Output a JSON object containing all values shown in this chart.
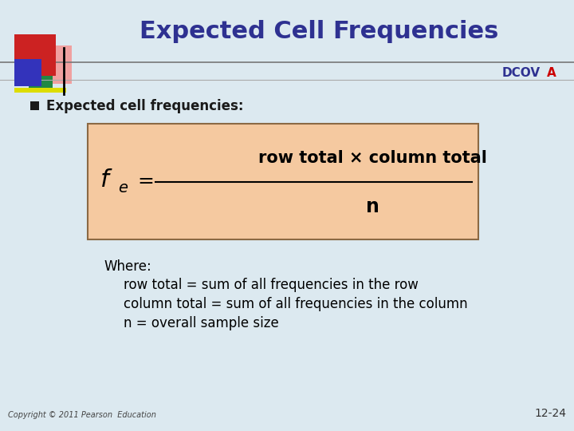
{
  "title": "Expected Cell Frequencies",
  "title_color": "#2E3191",
  "title_fontsize": 22,
  "bg_color": "#DCE9F0",
  "dcova_text": "DCOV",
  "dcova_a": "A",
  "dcova_color": "#2E3191",
  "dcova_a_color": "#CC0000",
  "bullet_text": "Expected cell frequencies:",
  "bullet_color": "#1a1a1a",
  "formula_box_color": "#F5C9A0",
  "formula_box_edge": "#8B6944",
  "numerator": "row total × column total",
  "denominator": "n",
  "where_text": "Where:",
  "line1": "row total = sum of all frequencies in the row",
  "line2": "column total = sum of all frequencies in the column",
  "line3": "n = overall sample size",
  "copyright": "Copyright © 2011 Pearson  Education",
  "page_num": "12-24",
  "separator_line_color": "#777777"
}
